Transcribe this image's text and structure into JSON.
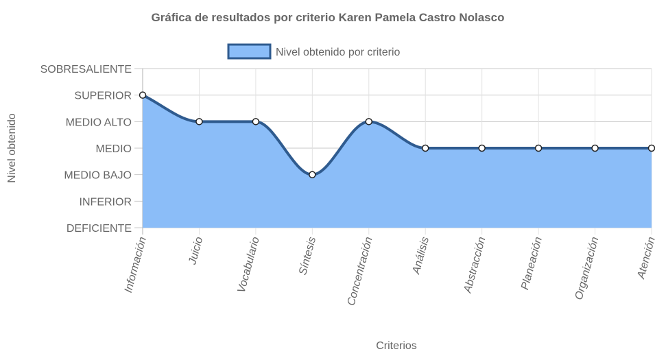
{
  "chart_data": {
    "type": "area",
    "title": "Gráfica de resultados por criterio Karen Pamela Castro Nolasco",
    "xlabel": "Criterios",
    "ylabel": "Nivel obtenido",
    "categories": [
      "Información",
      "Juicio",
      "Vocabulario",
      "Síntesis",
      "Concentración",
      "Análisis",
      "Abstracción",
      "Planeación",
      "Organización",
      "Atención"
    ],
    "y_levels": [
      "DEFICIENTE",
      "INFERIOR",
      "MEDIO BAJO",
      "MEDIO",
      "MEDIO ALTO",
      "SUPERIOR",
      "SOBRESALIENTE"
    ],
    "ylim": [
      0,
      6
    ],
    "series": [
      {
        "name": "Nivel obtenido por criterio",
        "values": [
          5,
          4,
          4,
          2,
          4,
          3,
          3,
          3,
          3,
          3
        ],
        "fill_color": "#8bbdf8",
        "line_color": "#2f5b8f"
      }
    ],
    "legend_position": "top",
    "grid": true
  }
}
